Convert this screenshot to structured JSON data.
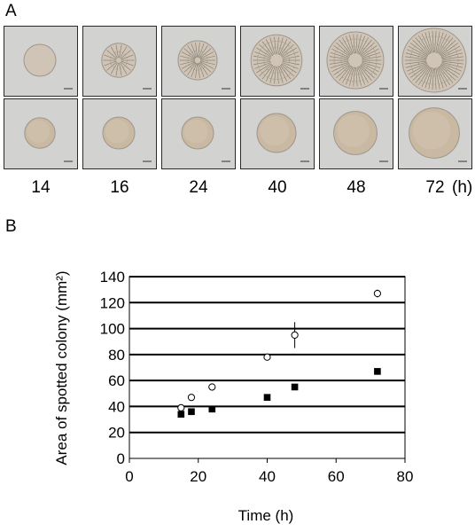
{
  "panel_a": {
    "label": "A",
    "time_labels": [
      "14",
      "16",
      "24",
      "40",
      "48",
      "72"
    ],
    "time_unit": "(h)",
    "rows": [
      {
        "colony_style": "wrinkled",
        "colony_color": "#cfc4b6",
        "fractions": [
          0.45,
          0.48,
          0.55,
          0.72,
          0.8,
          0.9
        ]
      },
      {
        "colony_style": "smooth",
        "colony_color": "#c9b9a2",
        "fractions": [
          0.43,
          0.45,
          0.45,
          0.55,
          0.61,
          0.71
        ]
      }
    ],
    "background_color": "#d2d2d0"
  },
  "panel_b": {
    "label": "B",
    "chart_data": {
      "type": "scatter",
      "xlabel": "Time (h)",
      "ylabel": "Area of spotted colony (mm²)",
      "xlim": [
        0,
        80
      ],
      "ylim": [
        0,
        140
      ],
      "xticks": [
        "0",
        "20",
        "40",
        "60",
        "80"
      ],
      "yticks": [
        "0",
        "20",
        "40",
        "60",
        "80",
        "100",
        "120",
        "140"
      ],
      "grid": "horizontal",
      "series": [
        {
          "marker": "open-circle",
          "x": [
            15,
            18,
            24,
            40,
            48,
            72
          ],
          "y": [
            39,
            47,
            55,
            78,
            95,
            127
          ],
          "err": [
            0,
            0,
            0,
            0,
            10,
            3
          ]
        },
        {
          "marker": "filled-square",
          "x": [
            15,
            18,
            24,
            40,
            48,
            72
          ],
          "y": [
            34,
            36,
            38,
            47,
            55,
            67
          ],
          "err": [
            0,
            0,
            0,
            0,
            0,
            0
          ]
        }
      ]
    }
  }
}
